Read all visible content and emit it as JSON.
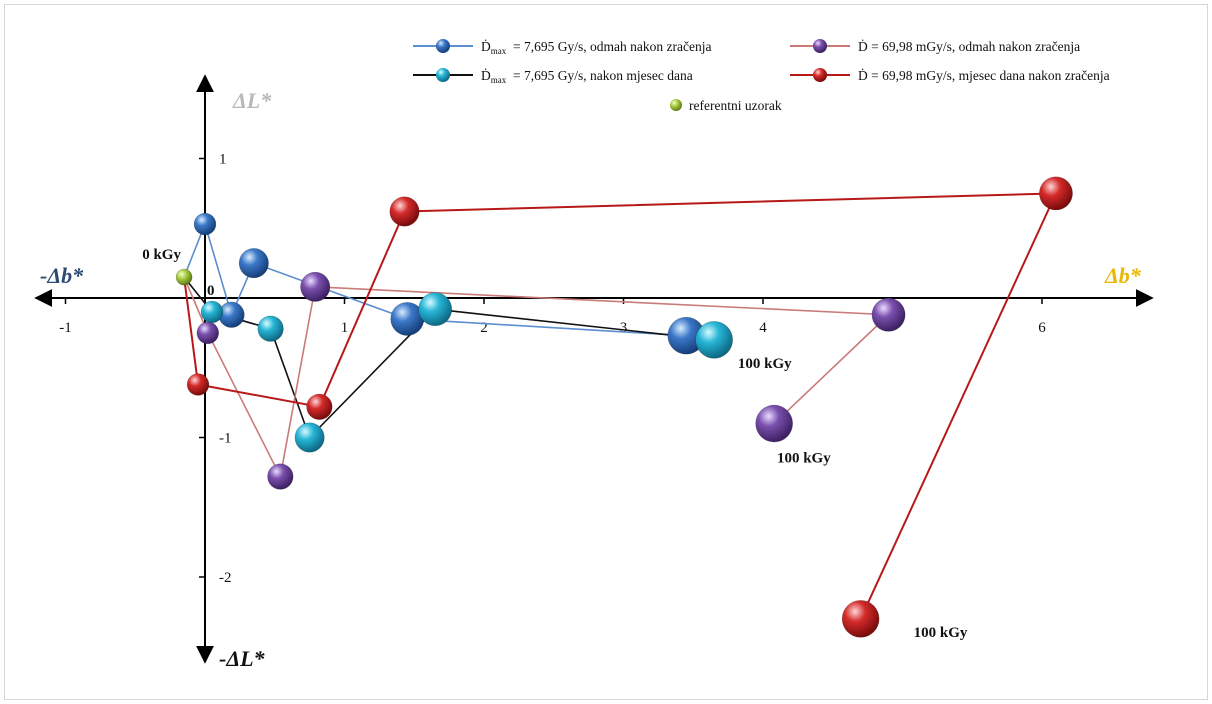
{
  "chart_data": {
    "type": "scatter",
    "x_axis_pos_label": "Δb*",
    "x_axis_neg_label": "-Δb*",
    "y_axis_pos_label": "ΔL*",
    "y_axis_neg_label": "-ΔL*",
    "origin_label": "0",
    "x_ticks": [
      {
        "value": -1,
        "label": "-1"
      },
      {
        "value": 1,
        "label": "1"
      },
      {
        "value": 2,
        "label": "2"
      },
      {
        "value": 3,
        "label": "3"
      },
      {
        "value": 4,
        "label": "4"
      },
      {
        "value": 6,
        "label": "6"
      }
    ],
    "y_ticks": [
      {
        "value": 1,
        "label": "1"
      },
      {
        "value": -1,
        "label": "-1"
      },
      {
        "value": -2,
        "label": "-2"
      }
    ],
    "xlim": [
      -1.25,
      6.75
    ],
    "ylim": [
      -2.6,
      1.55
    ],
    "grid": false,
    "legend_position": "top-right",
    "reference": {
      "name": "referentni uzorak",
      "x": -0.15,
      "y": 0.15,
      "color": "#a4c93a"
    },
    "series": [
      {
        "name_prefix": "Ḋ",
        "name_sub": "max",
        "name_rest": "= 7,695 Gy/s, odmah nakon zračenja",
        "color": "#3b78c8",
        "line_color": "#5b8fcf",
        "points": [
          [
            -0.15,
            0.15
          ],
          [
            0.0,
            0.53
          ],
          [
            0.19,
            -0.12
          ],
          [
            0.35,
            0.25
          ],
          [
            1.45,
            -0.15
          ],
          [
            3.45,
            -0.27
          ]
        ]
      },
      {
        "name_prefix": "Ḋ",
        "name_sub": "max",
        "name_rest": "= 7,695 Gy/s, nakon mjesec dana",
        "color": "#27b5d6",
        "line_color": "#111111",
        "points": [
          [
            -0.15,
            0.15
          ],
          [
            0.05,
            -0.1
          ],
          [
            0.47,
            -0.22
          ],
          [
            0.75,
            -1.0
          ],
          [
            1.65,
            -0.08
          ],
          [
            3.65,
            -0.3
          ]
        ]
      },
      {
        "name_prefix": "Ḋ",
        "name_sub": "",
        "name_rest": "= 69,98 mGy/s, odmah nakon zračenja",
        "color": "#7a4fad",
        "line_color": "#c97b78",
        "points": [
          [
            -0.15,
            0.15
          ],
          [
            0.02,
            -0.25
          ],
          [
            0.54,
            -1.28
          ],
          [
            0.79,
            0.08
          ],
          [
            4.9,
            -0.12
          ],
          [
            4.08,
            -0.9
          ]
        ]
      },
      {
        "name_prefix": "Ḋ",
        "name_sub": "",
        "name_rest": "= 69,98 mGy/s, mjesec dana nakon zračenja",
        "color": "#d42a2a",
        "line_color": "#b81818",
        "points": [
          [
            -0.15,
            0.15
          ],
          [
            -0.05,
            -0.62
          ],
          [
            0.82,
            -0.78
          ],
          [
            1.43,
            0.62
          ],
          [
            6.1,
            0.75
          ],
          [
            4.7,
            -2.3
          ]
        ]
      }
    ],
    "annotations": [
      {
        "text": "0 kGy",
        "x": -0.45,
        "y": 0.28
      },
      {
        "text": "100 kGy",
        "x": 3.82,
        "y": -0.5
      },
      {
        "text": "100 kGy",
        "x": 4.1,
        "y": -1.18
      },
      {
        "text": "100 kGy",
        "x": 5.08,
        "y": -2.43
      }
    ]
  }
}
